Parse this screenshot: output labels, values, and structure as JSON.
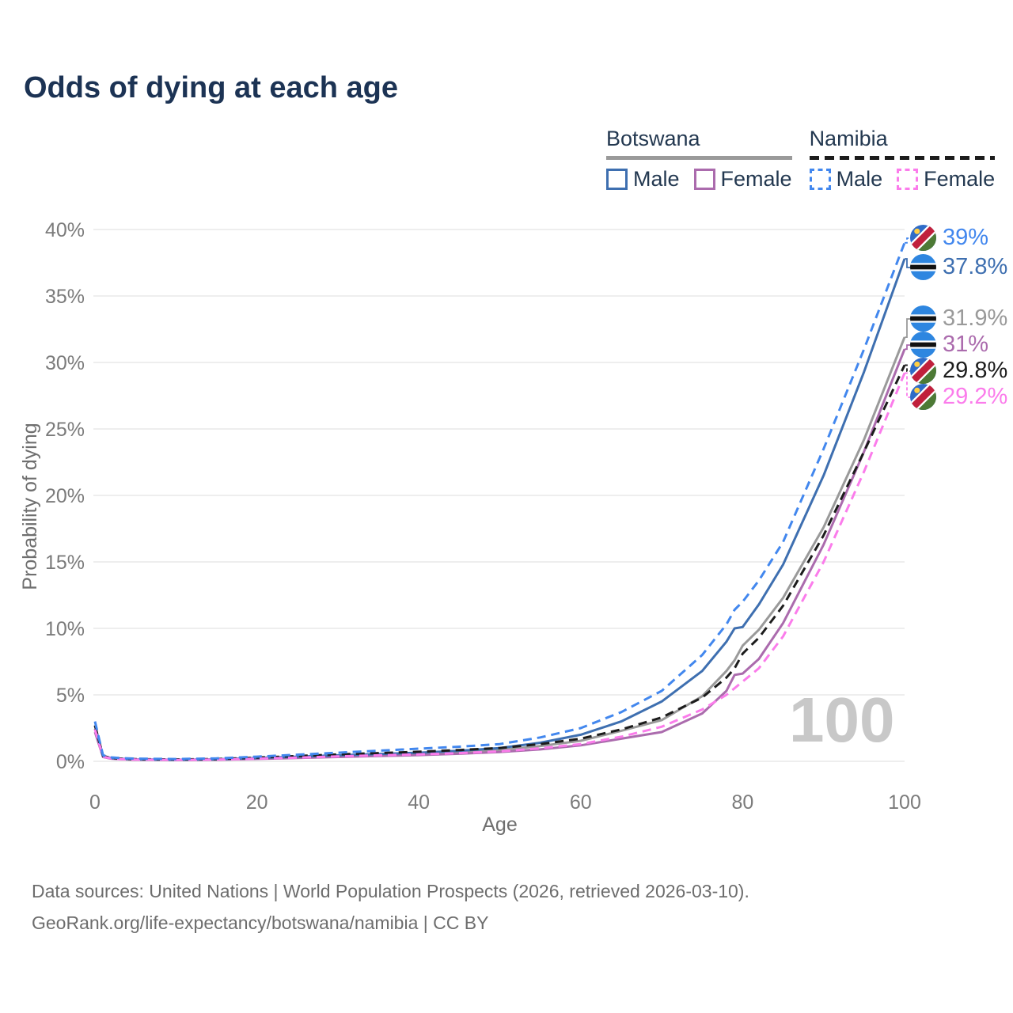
{
  "page": {
    "title": "Odds of dying at each age",
    "watermark_age": "100",
    "footer_line1": "Data sources: United Nations | World Population Prospects (2026, retrieved 2026-03-10).",
    "footer_line2": "GeoRank.org/life-expectancy/botswana/namibia | CC BY"
  },
  "legend": {
    "groups": [
      {
        "name": "Botswana",
        "line_style": "solid",
        "line_color": "#9a9a9a",
        "items": [
          {
            "label": "Male",
            "color": "#3e6fb0",
            "line_style": "solid"
          },
          {
            "label": "Female",
            "color": "#ab6bad",
            "line_style": "solid"
          }
        ]
      },
      {
        "name": "Namibia",
        "line_style": "dashed",
        "line_color": "#1c1c1c",
        "items": [
          {
            "label": "Male",
            "color": "#4287ee",
            "line_style": "dashed"
          },
          {
            "label": "Female",
            "color": "#fb7ceb",
            "line_style": "dashed"
          }
        ]
      }
    ]
  },
  "chart_data": {
    "type": "line",
    "title": "Odds of dying at each age",
    "xlabel": "Age",
    "ylabel": "Probability of dying",
    "xlim": [
      0,
      100
    ],
    "ylim_percent": [
      0,
      40
    ],
    "x_ticks": [
      0,
      20,
      40,
      60,
      80,
      100
    ],
    "y_ticks_percent": [
      0,
      5,
      10,
      15,
      20,
      25,
      30,
      35,
      40
    ],
    "grid": "horizontal",
    "legend_position": "top-right",
    "age_annotation": "100",
    "ages": [
      0,
      1,
      2,
      3,
      5,
      10,
      15,
      20,
      25,
      30,
      35,
      40,
      45,
      50,
      55,
      60,
      65,
      70,
      75,
      78,
      79,
      80,
      82,
      85,
      90,
      95,
      100
    ],
    "series": [
      {
        "name": "Botswana",
        "country": "Botswana",
        "sex": "Both",
        "color": "#9a9a9a",
        "dash": false,
        "end_label": "31.9%",
        "values_percent": [
          2.45,
          0.37,
          0.22,
          0.18,
          0.13,
          0.11,
          0.13,
          0.22,
          0.3,
          0.4,
          0.48,
          0.55,
          0.68,
          0.85,
          1.15,
          1.55,
          2.3,
          3.1,
          4.9,
          6.8,
          7.6,
          8.7,
          9.9,
          12.3,
          17.6,
          24.2,
          31.9
        ],
        "flag": "botswana"
      },
      {
        "name": "Botswana Female",
        "country": "Botswana",
        "sex": "Female",
        "color": "#ab6bad",
        "dash": false,
        "end_label": "31%",
        "values_percent": [
          2.2,
          0.33,
          0.2,
          0.16,
          0.12,
          0.1,
          0.12,
          0.18,
          0.25,
          0.33,
          0.4,
          0.47,
          0.57,
          0.7,
          0.9,
          1.2,
          1.7,
          2.2,
          3.6,
          5.3,
          6.5,
          6.6,
          7.7,
          10.4,
          16.3,
          23.3,
          31.0
        ],
        "flag": "botswana"
      },
      {
        "name": "Botswana Male",
        "country": "Botswana",
        "sex": "Male",
        "color": "#3e6fb0",
        "dash": false,
        "end_label": "37.8%",
        "values_percent": [
          2.7,
          0.4,
          0.25,
          0.2,
          0.15,
          0.12,
          0.15,
          0.25,
          0.35,
          0.45,
          0.55,
          0.65,
          0.8,
          1.0,
          1.4,
          2.0,
          3.0,
          4.5,
          6.8,
          9.0,
          10.0,
          10.1,
          11.8,
          14.8,
          21.5,
          29.3,
          37.8
        ],
        "flag": "botswana"
      },
      {
        "name": "Namibia",
        "country": "Namibia",
        "sex": "Both",
        "color": "#1c1c1c",
        "dash": true,
        "end_label": "29.8%",
        "values_percent": [
          2.7,
          0.4,
          0.26,
          0.21,
          0.16,
          0.14,
          0.17,
          0.28,
          0.4,
          0.52,
          0.62,
          0.72,
          0.85,
          1.0,
          1.3,
          1.7,
          2.4,
          3.3,
          4.8,
          6.3,
          7.0,
          8.1,
          9.3,
          11.7,
          17.0,
          23.3,
          29.8
        ],
        "flag": "namibia"
      },
      {
        "name": "Namibia Female",
        "country": "Namibia",
        "sex": "Female",
        "color": "#fb7ceb",
        "dash": true,
        "end_label": "29.2%",
        "values_percent": [
          2.4,
          0.35,
          0.22,
          0.17,
          0.13,
          0.11,
          0.13,
          0.2,
          0.28,
          0.37,
          0.45,
          0.52,
          0.62,
          0.75,
          0.98,
          1.3,
          1.85,
          2.6,
          3.9,
          5.0,
          5.5,
          6.0,
          7.0,
          9.4,
          15.0,
          21.8,
          29.2
        ],
        "flag": "namibia"
      },
      {
        "name": "Namibia Male",
        "country": "Namibia",
        "sex": "Male",
        "color": "#4287ee",
        "dash": true,
        "end_label": "39%",
        "values_percent": [
          3.0,
          0.45,
          0.3,
          0.25,
          0.2,
          0.17,
          0.22,
          0.35,
          0.5,
          0.65,
          0.8,
          0.95,
          1.1,
          1.3,
          1.8,
          2.5,
          3.7,
          5.3,
          8.0,
          10.3,
          11.4,
          12.0,
          13.6,
          16.5,
          23.5,
          31.0,
          39.0
        ],
        "flag": "namibia"
      }
    ],
    "end_labels": [
      {
        "text": "39%",
        "series": "Namibia Male",
        "flag": "namibia",
        "color": "#4287ee"
      },
      {
        "text": "37.8%",
        "series": "Botswana Male",
        "flag": "botswana",
        "color": "#3e6fb0"
      },
      {
        "text": "31.9%",
        "series": "Botswana",
        "flag": "botswana",
        "color": "#9a9a9a"
      },
      {
        "text": "31%",
        "series": "Botswana Female",
        "flag": "botswana",
        "color": "#ab6bad"
      },
      {
        "text": "29.8%",
        "series": "Namibia",
        "flag": "namibia",
        "color": "#1c1c1c"
      },
      {
        "text": "29.2%",
        "series": "Namibia Female",
        "flag": "namibia",
        "color": "#fb7ceb"
      }
    ]
  }
}
